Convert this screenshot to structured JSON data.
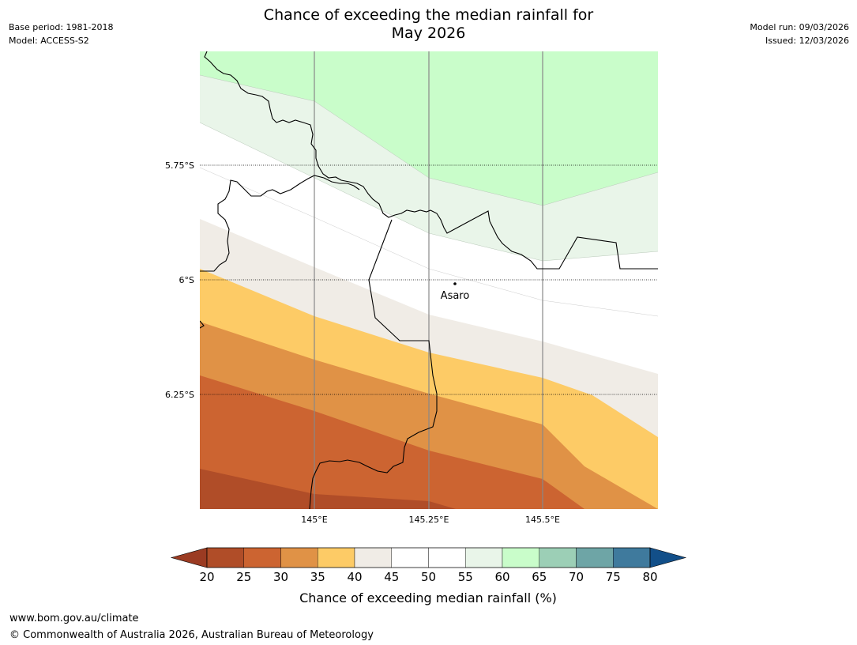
{
  "header": {
    "title_line1": "Chance of exceeding the median rainfall for",
    "title_line2": "May 2026",
    "base_period": "Base period: 1981-2018",
    "model": "Model: ACCESS-S2",
    "model_run": "Model run: 09/03/2026",
    "issued": "Issued: 12/03/2026"
  },
  "map": {
    "lat_labels": [
      "5.75°S",
      "6°S",
      "6.25°S"
    ],
    "lon_labels": [
      "145°E",
      "145.25°E",
      "145.5°E"
    ],
    "place": "Asaro"
  },
  "colorbar": {
    "ticks": [
      "20",
      "25",
      "30",
      "35",
      "40",
      "45",
      "50",
      "55",
      "60",
      "65",
      "70",
      "75",
      "80"
    ],
    "label": "Chance of exceeding median rainfall (%)",
    "colors": {
      "under20": "#9b3b22",
      "b20_25": "#b04d28",
      "b25_30": "#cc6431",
      "b30_35": "#e09246",
      "b35_40": "#fdcb66",
      "b40_45": "#f0ece6",
      "b45_55": "#ffffff",
      "b55_60": "#e9f5e9",
      "b60_65": "#c9fdca",
      "b65_70": "#9ccfb6",
      "b70_75": "#6ea5a6",
      "b75_80": "#3f7a9d",
      "over80": "#124f89"
    }
  },
  "footer": {
    "url": "www.bom.gov.au/climate",
    "copyright": "© Commonwealth of Australia 2026, Australian Bureau of Meteorology"
  }
}
